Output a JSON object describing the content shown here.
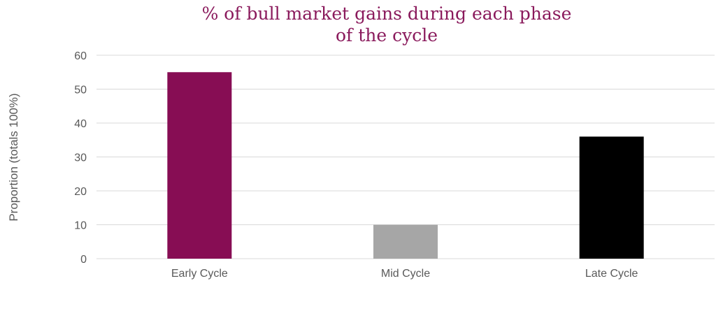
{
  "chart_data": {
    "type": "bar",
    "title_lines": [
      "% of bull market gains during each phase",
      "of the cycle"
    ],
    "xlabel": "",
    "ylabel": "Proportion (totals 100%)",
    "ylim": [
      0,
      60
    ],
    "yticks": [
      0,
      10,
      20,
      30,
      40,
      50,
      60
    ],
    "categories": [
      "Early Cycle",
      "Mid Cycle",
      "Late Cycle"
    ],
    "values": [
      55,
      10,
      36
    ],
    "bar_colors": [
      "#870d54",
      "#a6a6a6",
      "#000000"
    ],
    "grid": true,
    "legend": "none"
  },
  "colors": {
    "title": "#8a1a5c",
    "grid": "#d9d9d9",
    "axis_text": "#595959"
  }
}
